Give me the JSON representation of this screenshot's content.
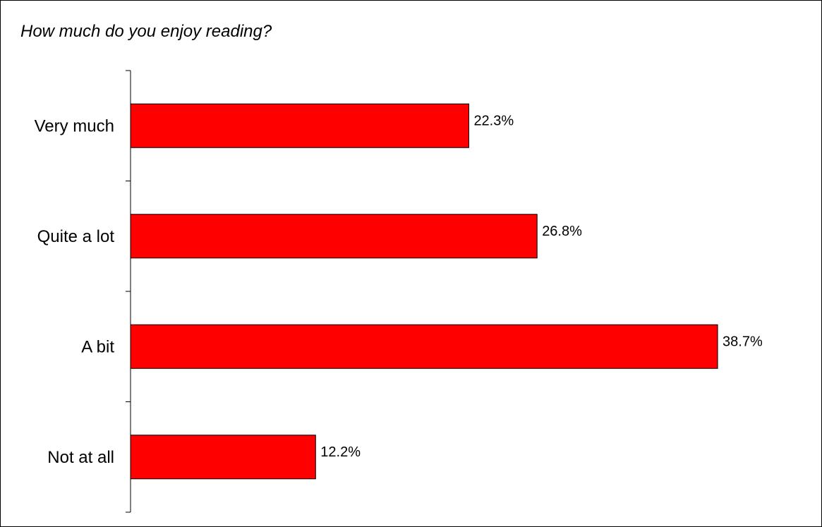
{
  "chart_data": {
    "type": "bar",
    "orientation": "horizontal",
    "title": "How much do you enjoy reading?",
    "categories": [
      "Very much",
      "Quite a lot",
      "A bit",
      "Not at all"
    ],
    "values": [
      22.3,
      26.8,
      38.7,
      12.2
    ],
    "value_labels": [
      "22.3%",
      "26.8%",
      "38.7%",
      "12.2%"
    ],
    "xlim": [
      0,
      45
    ],
    "grid": false,
    "legend": "none",
    "bar_color": "#FF0000",
    "bar_border_color": "#000000"
  }
}
